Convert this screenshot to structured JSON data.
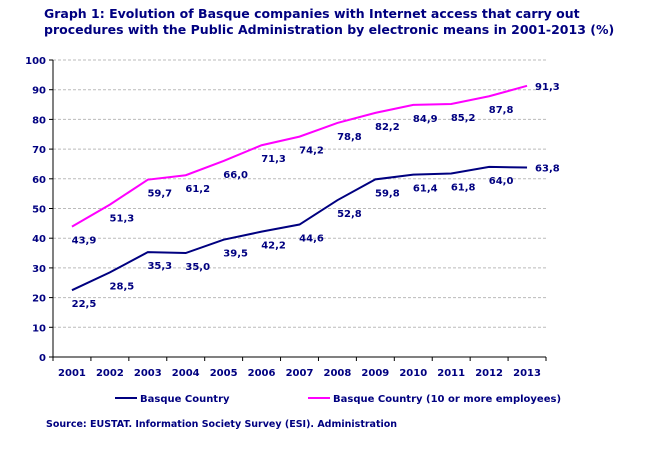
{
  "chart_data": {
    "type": "line",
    "title": "Graph 1: Evolution of Basque companies with Internet access that carry out procedures with the Public Administration by electronic means in 2001-2013 (%)",
    "categories": [
      "2001",
      "2002",
      "2003",
      "2004",
      "2005",
      "2006",
      "2007",
      "2008",
      "2009",
      "2010",
      "2011",
      "2012",
      "2013"
    ],
    "ylim": [
      0,
      100
    ],
    "yticks": [
      0,
      10,
      20,
      30,
      40,
      50,
      60,
      70,
      80,
      90,
      100
    ],
    "grid": true,
    "legend_position": "bottom",
    "series": [
      {
        "name": "Basque Country",
        "color": "#000080",
        "values": [
          22.5,
          28.5,
          35.3,
          35.0,
          39.5,
          42.2,
          44.6,
          52.8,
          59.8,
          61.4,
          61.8,
          64.0,
          63.8
        ],
        "labels": [
          "22,5",
          "28,5",
          "35,3",
          "35,0",
          "39,5",
          "42,2",
          "44,6",
          "52,8",
          "59,8",
          "61,4",
          "61,8",
          "64,0",
          "63,8"
        ]
      },
      {
        "name": "Basque Country (10 or more employees)",
        "color": "#FF00FF",
        "values": [
          43.9,
          51.3,
          59.7,
          61.2,
          66.0,
          71.3,
          74.2,
          78.8,
          82.2,
          84.9,
          85.2,
          87.8,
          91.3
        ],
        "labels": [
          "43,9",
          "51,3",
          "59,7",
          "61,2",
          "66,0",
          "71,3",
          "74,2",
          "78,8",
          "82,2",
          "84,9",
          "85,2",
          "87,8",
          "91,3"
        ]
      }
    ],
    "source": "Source: EUSTAT. Information Society Survey (ESI). Administration"
  }
}
